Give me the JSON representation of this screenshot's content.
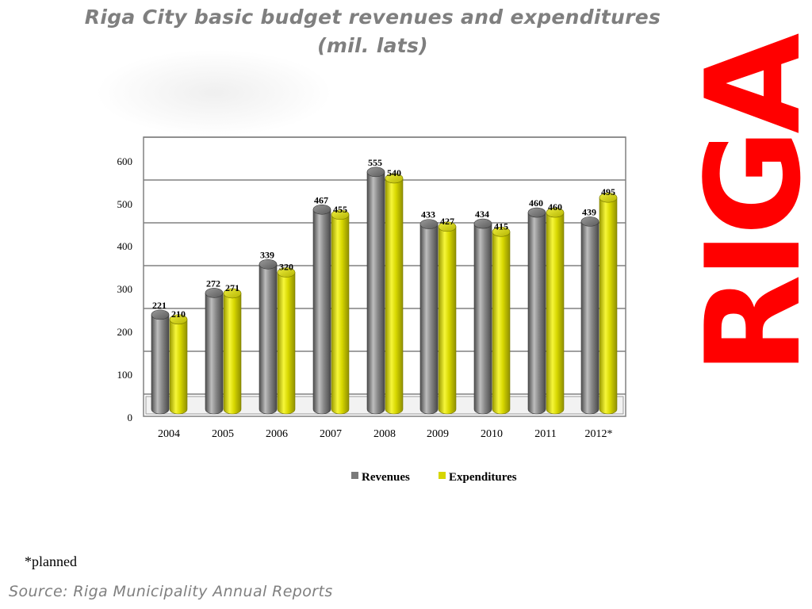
{
  "title_line1": "Riga City basic budget revenues and expenditures",
  "title_line2": "(mil. lats)",
  "logo_text": "RIGA",
  "footnote": "*planned",
  "source": "Source: Riga Municipality Annual Reports",
  "colors": {
    "revenues": "#7a7a7a",
    "expenditures": "#d6d600",
    "title": "#7f7f7f",
    "logo": "#ff0000",
    "grid": "#808080"
  },
  "chart_data": {
    "type": "bar",
    "title": "Riga City basic budget revenues and expenditures (mil. lats)",
    "categories": [
      "2004",
      "2005",
      "2006",
      "2007",
      "2008",
      "2009",
      "2010",
      "2011",
      "2012*"
    ],
    "series": [
      {
        "name": "Revenues",
        "values": [
          221,
          272,
          339,
          467,
          555,
          433,
          434,
          460,
          439
        ]
      },
      {
        "name": "Expenditures",
        "values": [
          210,
          271,
          320,
          455,
          540,
          427,
          415,
          460,
          495
        ]
      }
    ],
    "yticks": [
      "0",
      "100",
      "200",
      "300",
      "400",
      "500",
      "600"
    ],
    "ylim": [
      0,
      650
    ],
    "grid": true,
    "legend_position": "bottom",
    "style": "3d-cylinder"
  }
}
